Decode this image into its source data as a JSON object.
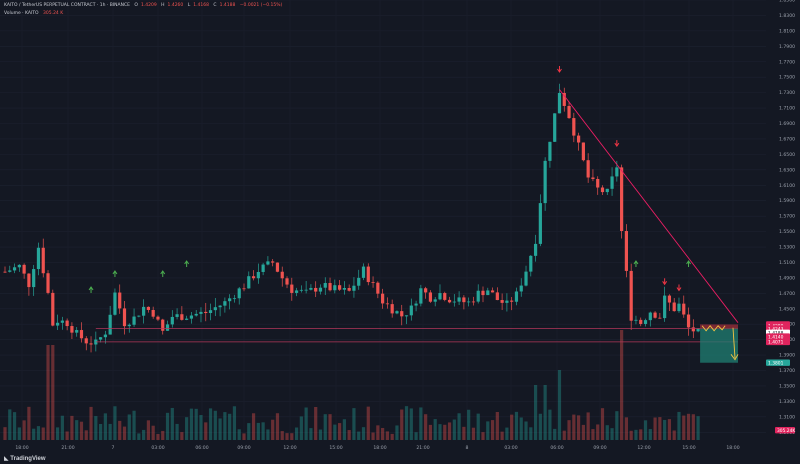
{
  "header": {
    "symbol_line": "KAITO / TetherUS PERPETUAL CONTRACT · 1h · BINANCE",
    "o_label": "O",
    "o_value": "1.4209",
    "h_label": "H",
    "h_value": "1.4260",
    "l_label": "L",
    "l_value": "1.4168",
    "c_label": "C",
    "c_value": "1.4188",
    "change": "−0.0021 (−0.15%)",
    "volume_label": "Volume · KAITO",
    "volume_value": "305.24 K"
  },
  "watermark": {
    "brand": "TradingView"
  },
  "colors": {
    "background": "#141823",
    "up": "#26a69a",
    "down": "#ef5350",
    "trendline": "#e91e63",
    "support_line": "#b2365a",
    "arrow_up": "#4caf50",
    "arrow_down": "#f23645",
    "target_box": "#1f7f73",
    "sell_box": "#8c2b36",
    "forecast": "#f5c542"
  },
  "chart_data": {
    "type": "candlestick",
    "timeframe": "1h",
    "ylim": [
      1.28,
      1.85
    ],
    "y_ticks": [
      "1.8500",
      "1.8300",
      "1.8100",
      "1.7900",
      "1.7700",
      "1.7500",
      "1.7300",
      "1.7100",
      "1.6900",
      "1.6700",
      "1.6500",
      "1.6300",
      "1.6100",
      "1.5900",
      "1.5700",
      "1.5500",
      "1.5300",
      "1.5100",
      "1.4900",
      "1.4700",
      "1.4500",
      "1.4300",
      "1.4100",
      "1.3900",
      "1.3700",
      "1.3500",
      "1.3300",
      "1.3100",
      "1.2900"
    ],
    "x_ticks": [
      "18:00",
      "21:00",
      "7",
      "03:00",
      "06:00",
      "09:00",
      "12:00",
      "15:00",
      "18:00",
      "21:00",
      "8",
      "03:00",
      "06:00",
      "09:00",
      "12:00",
      "15:00",
      "18:00"
    ],
    "price_labels": [
      {
        "text": "1.4297",
        "value": 1.4297,
        "kind": "down"
      },
      {
        "text": "1.4280",
        "value": 1.428,
        "kind": "down"
      },
      {
        "text": "1.4243",
        "value": 1.4243,
        "kind": "down"
      },
      {
        "text": "1.4188",
        "value": 1.4188,
        "kind": "current"
      },
      {
        "text": "1.4140",
        "value": 1.414,
        "kind": "down"
      },
      {
        "text": "1.4071",
        "value": 1.4071,
        "kind": "down"
      },
      {
        "text": "1.3801",
        "value": 1.3801,
        "kind": "target"
      }
    ],
    "volume_label": "305.24K",
    "support_levels": [
      1.4243,
      1.4071
    ],
    "trendline": {
      "from": {
        "x_index": 116,
        "price": 1.734
      },
      "to": {
        "x_index": 143,
        "price": 1.432
      }
    },
    "sell_zone": [
      1.4243,
      1.4297
    ],
    "target_zone": [
      1.3801,
      1.4243
    ],
    "down_arrow_indices": [
      116,
      128,
      138,
      141
    ],
    "up_arrow_indices": [
      19,
      24,
      34,
      38,
      133,
      143
    ]
  }
}
